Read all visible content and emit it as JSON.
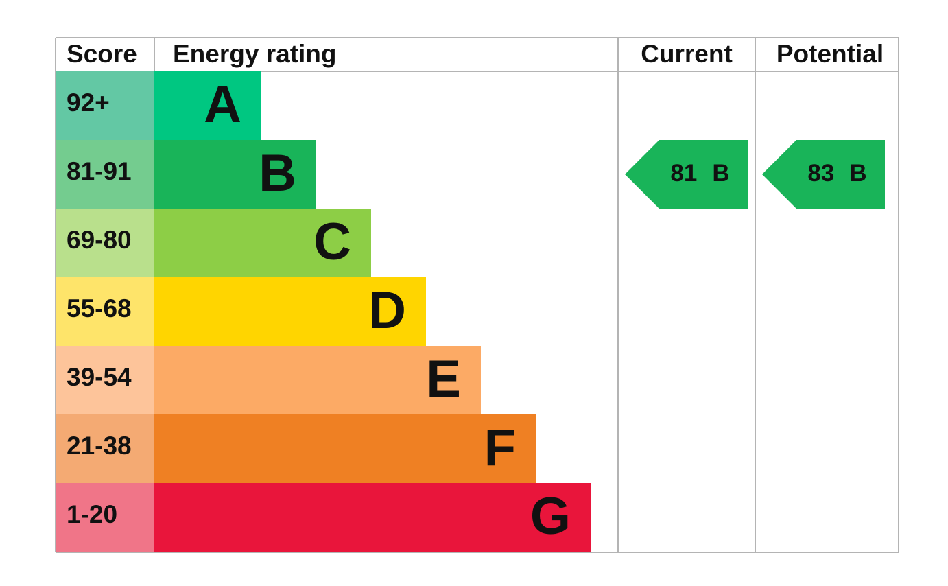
{
  "header": {
    "score": "Score",
    "rating": "Energy rating",
    "current": "Current",
    "potential": "Potential"
  },
  "bands": [
    {
      "score": "92+",
      "letter": "A",
      "color": "#00c781",
      "light": "#63c8a4"
    },
    {
      "score": "81-91",
      "letter": "B",
      "color": "#19b459",
      "light": "#74cc8f"
    },
    {
      "score": "69-80",
      "letter": "C",
      "color": "#8dce46",
      "light": "#b9e08c"
    },
    {
      "score": "55-68",
      "letter": "D",
      "color": "#ffd500",
      "light": "#fee46a"
    },
    {
      "score": "39-54",
      "letter": "E",
      "color": "#fcaa65",
      "light": "#fdc49a"
    },
    {
      "score": "21-38",
      "letter": "F",
      "color": "#ef8023",
      "light": "#f4aa73"
    },
    {
      "score": "1-20",
      "letter": "G",
      "color": "#e9153b",
      "light": "#f07588"
    }
  ],
  "current": {
    "score": 81,
    "letter": "B"
  },
  "potential": {
    "score": 83,
    "letter": "B"
  }
}
